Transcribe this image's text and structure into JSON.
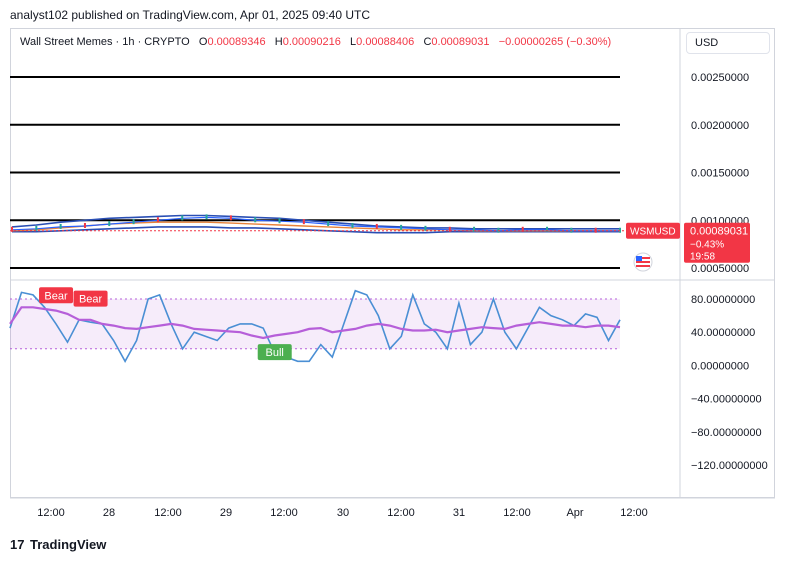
{
  "header": {
    "publisher": "analyst102 published on TradingView.com, Apr 01, 2025 09:40 UTC"
  },
  "legend": {
    "symbol": "Wall Street Memes · 1h · CRYPTO",
    "o_label": "O",
    "o": "0.00089346",
    "h_label": "H",
    "h": "0.00090216",
    "l_label": "L",
    "l": "0.00088406",
    "c_label": "C",
    "c": "0.00089031",
    "change": "−0.00000265 (−0.30%)"
  },
  "currency_button": "USD",
  "price_tag": {
    "ticker": "WSMUSD",
    "price": "0.00089031",
    "pct": "−0.43%",
    "countdown": "19:58"
  },
  "colors": {
    "price_line": "#2962ff",
    "bear": "#f23645",
    "bull": "#4caf50",
    "stoch_k": "#4a8fd4",
    "stoch_d": "#b65fd9"
  },
  "footer": {
    "brand": "TradingView",
    "logo_icon": "tradingview-logo-icon"
  },
  "chart_data": [
    {
      "type": "line",
      "x_ticks": [
        "12:00",
        "28",
        "12:00",
        "29",
        "12:00",
        "30",
        "12:00",
        "31",
        "12:00",
        "Apr",
        "12:00"
      ],
      "y_ticks": [
        "0.00250000",
        "0.00200000",
        "0.00150000",
        "0.00100000",
        "0.00050000"
      ],
      "ylim": [
        0.0005,
        0.0025
      ],
      "horizontal_lines": [
        0.0025,
        0.002,
        0.0015,
        0.001,
        0.0005
      ],
      "price": [
        0.0009,
        0.00091,
        0.00093,
        0.00094,
        0.00096,
        0.00098,
        0.001,
        0.00102,
        0.00103,
        0.00102,
        0.001,
        0.00099,
        0.00098,
        0.00096,
        0.00094,
        0.00093,
        0.00092,
        0.00091,
        0.0009,
        0.0009,
        0.00089,
        0.0009,
        0.0009,
        0.00089,
        0.00089,
        0.00089
      ],
      "upper_band": [
        0.00093,
        0.00095,
        0.00098,
        0.001,
        0.00102,
        0.00103,
        0.00104,
        0.00105,
        0.00105,
        0.00104,
        0.00103,
        0.00102,
        0.001,
        0.00098,
        0.00096,
        0.00094,
        0.00093,
        0.00092,
        0.00092,
        0.00091,
        0.00091,
        0.00091,
        0.00091,
        0.00091,
        0.00091,
        0.00091
      ],
      "lower_band": [
        0.00088,
        0.00088,
        0.00089,
        0.0009,
        0.00091,
        0.00092,
        0.00093,
        0.00093,
        0.00093,
        0.00092,
        0.00092,
        0.00091,
        0.0009,
        0.00089,
        0.00088,
        0.00087,
        0.00087,
        0.00087,
        0.00088,
        0.00088,
        0.00088,
        0.00088,
        0.00088,
        0.00088,
        0.00088,
        0.00088
      ],
      "ma_orange": [
        0.00089,
        0.0009,
        0.00092,
        0.00094,
        0.00096,
        0.00097,
        0.00098,
        0.00098,
        0.00098,
        0.00097,
        0.00096,
        0.00095,
        0.00094,
        0.00093,
        0.00092,
        0.00091,
        0.0009,
        0.0009,
        0.0009,
        0.00089,
        0.00089,
        0.00089,
        0.00089,
        0.00089,
        0.00089,
        0.00089
      ]
    },
    {
      "type": "line",
      "y_ticks": [
        "80.00000000",
        "40.00000000",
        "0.00000000",
        "−40.00000000",
        "−80.00000000",
        "−120.00000000"
      ],
      "ylim": [
        -140,
        100
      ],
      "band": [
        20,
        80
      ],
      "stoch_k": [
        45,
        88,
        85,
        70,
        50,
        28,
        55,
        52,
        50,
        30,
        5,
        30,
        80,
        85,
        50,
        20,
        40,
        35,
        30,
        45,
        50,
        50,
        45,
        15,
        10,
        5,
        5,
        25,
        10,
        50,
        90,
        85,
        60,
        20,
        35,
        85,
        50,
        40,
        20,
        75,
        25,
        40,
        80,
        40,
        20,
        45,
        70,
        60,
        55,
        48,
        62,
        58,
        30,
        55
      ],
      "stoch_d": [
        50,
        70,
        70,
        68,
        66,
        62,
        55,
        55,
        50,
        48,
        45,
        44,
        46,
        48,
        50,
        48,
        44,
        43,
        42,
        41,
        40,
        36,
        33,
        36,
        38,
        40,
        44,
        45,
        40,
        42,
        44,
        48,
        50,
        48,
        44,
        42,
        42,
        43,
        40,
        42,
        44,
        46,
        45,
        44,
        48,
        50,
        52,
        50,
        48,
        48,
        46,
        48,
        48,
        46
      ],
      "labels": [
        {
          "text": "Bear",
          "kind": "bear",
          "index": 4,
          "value": 70
        },
        {
          "text": "Bear",
          "kind": "bear",
          "index": 7,
          "value": 66
        },
        {
          "text": "Bull",
          "kind": "bull",
          "index": 23,
          "value": 28
        }
      ]
    }
  ]
}
